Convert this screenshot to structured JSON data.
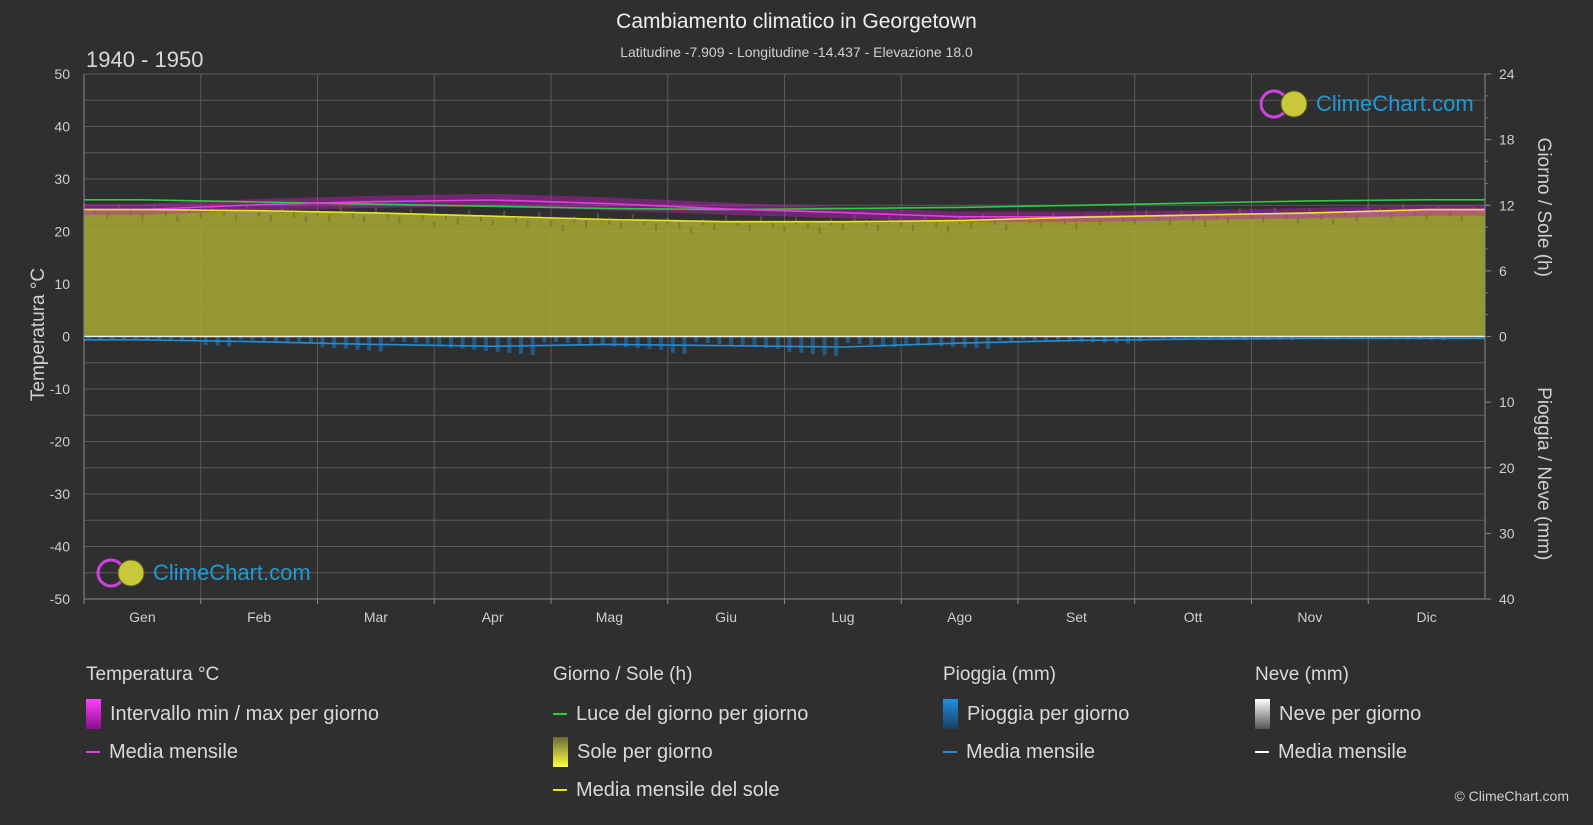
{
  "header": {
    "title": "Cambiamento climatico in Georgetown",
    "subtitle": "Latitudine -7.909 - Longitudine -14.437 - Elevazione 18.0",
    "period": "1940 - 1950"
  },
  "logo_text": "ClimeChart.com",
  "copyright": "© ClimeChart.com",
  "colors": {
    "temp_line": "#e040e0",
    "temp_band": "#c020c0",
    "daylight_line": "#2ecc40",
    "sun_line": "#e5e52a",
    "sun_fill": "#a8a832",
    "rain_line": "#1f8fdc",
    "rain_bar": "#1f6ea8",
    "snow_line": "#ffffff",
    "zero_line": "#eeeeee",
    "grid": "#5a5a5a",
    "logo_text": "#1e9bd7"
  },
  "chart_data": {
    "type": "area",
    "categories": [
      "Gen",
      "Feb",
      "Mar",
      "Apr",
      "Mag",
      "Giu",
      "Lug",
      "Ago",
      "Set",
      "Ott",
      "Nov",
      "Dic"
    ],
    "axes": {
      "left": {
        "label": "Temperatura °C",
        "range": [
          -50,
          50
        ],
        "ticks": [
          "50",
          "40",
          "30",
          "20",
          "10",
          "0",
          "-10",
          "-20",
          "-30",
          "-40",
          "-50"
        ]
      },
      "right_top": {
        "label": "Giorno / Sole (h)",
        "range": [
          0,
          24
        ],
        "ticks": [
          "24",
          "18",
          "12",
          "6",
          "0"
        ]
      },
      "right_bottom": {
        "label": "Pioggia / Neve (mm)",
        "range": [
          0,
          40
        ],
        "ticks": [
          "10",
          "20",
          "30",
          "40"
        ]
      }
    },
    "grid": true,
    "series": [
      {
        "name": "Intervallo min / max per giorno",
        "key": "temp_range",
        "min": [
          23.2,
          24.0,
          24.5,
          24.8,
          24.0,
          23.2,
          22.5,
          21.8,
          21.8,
          22.2,
          22.5,
          23.0
        ],
        "max": [
          25.3,
          26.2,
          26.8,
          27.2,
          26.5,
          25.5,
          24.6,
          23.8,
          23.8,
          24.0,
          24.5,
          25.0
        ]
      },
      {
        "name": "Media mensile",
        "key": "temp_mean",
        "values": [
          24.2,
          25.1,
          25.7,
          26.0,
          25.3,
          24.3,
          23.6,
          22.8,
          22.8,
          23.1,
          23.5,
          24.0
        ]
      },
      {
        "name": "Luce del giorno per giorno",
        "key": "daylight",
        "values": [
          12.5,
          12.3,
          12.1,
          11.9,
          11.7,
          11.6,
          11.7,
          11.8,
          12.0,
          12.2,
          12.4,
          12.5
        ]
      },
      {
        "name": "Sole per giorno",
        "key": "sunshine",
        "values": [
          11.6,
          11.5,
          11.3,
          11.0,
          10.7,
          10.5,
          10.5,
          10.6,
          10.9,
          11.1,
          11.3,
          11.6
        ]
      },
      {
        "name": "Media mensile del sole",
        "key": "sun_mean",
        "values": [
          11.6,
          11.5,
          11.3,
          11.0,
          10.7,
          10.5,
          10.5,
          10.6,
          10.9,
          11.1,
          11.3,
          11.6
        ]
      },
      {
        "name": "Pioggia per giorno",
        "key": "rain_daily",
        "values": [
          0.5,
          0.8,
          1.2,
          1.5,
          1.2,
          1.4,
          1.6,
          1.0,
          0.6,
          0.4,
          0.3,
          0.3
        ]
      },
      {
        "name": "Media mensile",
        "key": "rain_mean",
        "values": [
          0.5,
          0.8,
          1.2,
          1.5,
          1.2,
          1.4,
          1.6,
          1.0,
          0.6,
          0.4,
          0.3,
          0.3
        ]
      },
      {
        "name": "Neve per giorno",
        "key": "snow_daily",
        "values": [
          0,
          0,
          0,
          0,
          0,
          0,
          0,
          0,
          0,
          0,
          0,
          0
        ]
      },
      {
        "name": "Media mensile",
        "key": "snow_mean",
        "values": [
          0,
          0,
          0,
          0,
          0,
          0,
          0,
          0,
          0,
          0,
          0,
          0
        ]
      }
    ]
  },
  "legend": {
    "temp": {
      "heading": "Temperatura °C",
      "items": [
        "Intervallo min / max per giorno",
        "Media mensile"
      ]
    },
    "sun": {
      "heading": "Giorno / Sole (h)",
      "items": [
        "Luce del giorno per giorno",
        "Sole per giorno",
        "Media mensile del sole"
      ]
    },
    "rain": {
      "heading": "Pioggia (mm)",
      "items": [
        "Pioggia per giorno",
        "Media mensile"
      ]
    },
    "snow": {
      "heading": "Neve (mm)",
      "items": [
        "Neve per giorno",
        "Media mensile"
      ]
    }
  }
}
